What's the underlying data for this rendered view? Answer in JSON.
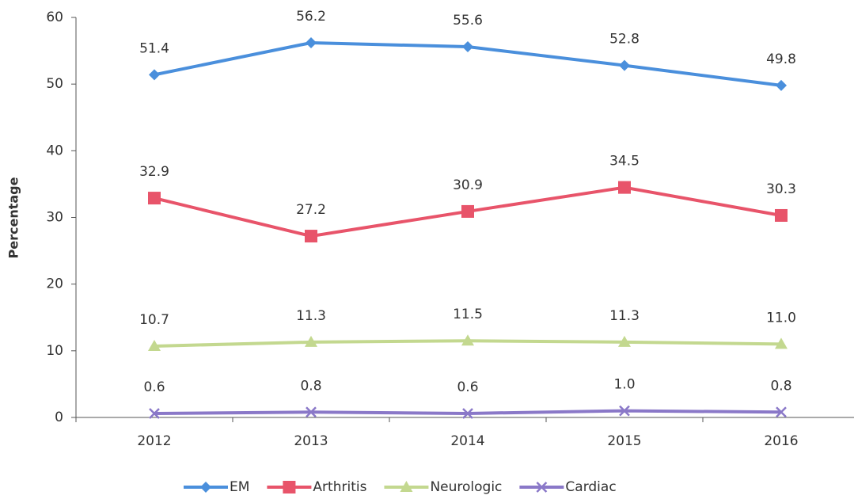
{
  "chart_data": {
    "type": "line",
    "y_label": "Percentage",
    "categories": [
      "2012",
      "2013",
      "2014",
      "2015",
      "2016"
    ],
    "series": [
      {
        "name": "EM",
        "color": "#4a8fdc",
        "marker": "diamond",
        "values": [
          51.4,
          56.2,
          55.6,
          52.8,
          49.8
        ],
        "value_labels": [
          "51.4",
          "56.2",
          "55.6",
          "52.8",
          "49.8"
        ]
      },
      {
        "name": "Arthritis",
        "color": "#e8546a",
        "marker": "square",
        "values": [
          32.9,
          27.2,
          30.9,
          34.5,
          30.3
        ],
        "value_labels": [
          "32.9",
          "27.2",
          "30.9",
          "34.5",
          "30.3"
        ]
      },
      {
        "name": "Neurologic",
        "color": "#c3d88f",
        "marker": "triangle",
        "values": [
          10.7,
          11.3,
          11.5,
          11.3,
          11.0
        ],
        "value_labels": [
          "10.7",
          "11.3",
          "11.5",
          "11.3",
          "11.0"
        ]
      },
      {
        "name": "Cardiac",
        "color": "#8a78c8",
        "marker": "x",
        "values": [
          0.6,
          0.8,
          0.6,
          1.0,
          0.8
        ],
        "value_labels": [
          "0.6",
          "0.8",
          "0.6",
          "1.0",
          "0.8"
        ]
      }
    ],
    "ylim": [
      0,
      60
    ],
    "yticks": [
      0,
      10,
      20,
      30,
      40,
      50,
      60
    ],
    "grid": false,
    "legend": "bottom"
  }
}
